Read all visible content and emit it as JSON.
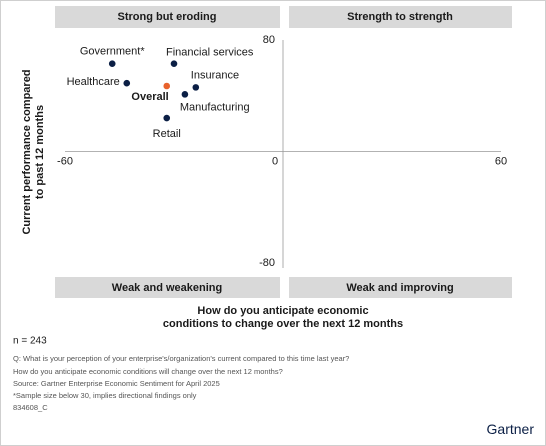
{
  "chart_data": {
    "type": "scatter",
    "quadrants": [
      "Strong but eroding",
      "Strength to strength",
      "Weak and weakening",
      "Weak and improving"
    ],
    "ylabel": [
      "Current performance compared",
      "to past 12 months"
    ],
    "xlabel": [
      "How do you anticipate economic",
      "conditions to change over the next 12 months"
    ],
    "xlim": [
      -60,
      60
    ],
    "ylim": [
      -80,
      80
    ],
    "xticks": [
      -60,
      0,
      60
    ],
    "yticks": [
      -80,
      80
    ],
    "points": [
      {
        "label": "Government*",
        "x": -47,
        "y": 63,
        "color": "#0b1f45"
      },
      {
        "label": "Financial services",
        "x": -30,
        "y": 63,
        "color": "#0b1f45"
      },
      {
        "label": "Healthcare",
        "x": -43,
        "y": 49,
        "color": "#0b1f45"
      },
      {
        "label": "Insurance",
        "x": -24,
        "y": 46,
        "color": "#0b1f45"
      },
      {
        "label": "Overall",
        "x": -32,
        "y": 47,
        "color": "#e8622c",
        "label_weight": "bold"
      },
      {
        "label": "Manufacturing",
        "x": -27,
        "y": 41,
        "color": "#0b1f45"
      },
      {
        "label": "Retail",
        "x": -32,
        "y": 24,
        "color": "#0b1f45"
      }
    ]
  },
  "notes": {
    "n": "n = 243",
    "lines": [
      "Q: What is your perception of your enterprise's/organization's current compared to this time last year?",
      "How do you anticipate economic conditions will change over the next 12 months?",
      "Source: Gartner Enterprise Economic Sentiment for April 2025",
      "*Sample size below 30, implies directional findings only",
      "834608_C"
    ],
    "logo": "Gartner"
  }
}
